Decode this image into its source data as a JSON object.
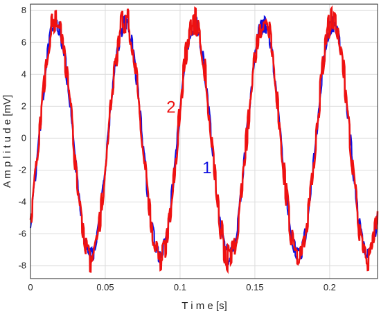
{
  "chart_data": {
    "type": "line",
    "xlabel": "T i m e [s]",
    "ylabel": "A m p l i t u d e [mV]",
    "xlim": [
      0,
      0.232
    ],
    "ylim": [
      -8.8,
      8.4
    ],
    "xticks": [
      0,
      0.05,
      0.1,
      0.15,
      0.2
    ],
    "xtick_labels": [
      "0",
      "0.05",
      "0.1",
      "0.15",
      "0.2"
    ],
    "yticks": [
      -8,
      -6,
      -4,
      -2,
      0,
      2,
      4,
      6,
      8
    ],
    "ytick_labels": [
      "-8",
      "-6",
      "-4",
      "-2",
      "0",
      "2",
      "4",
      "6",
      "8"
    ],
    "grid": true,
    "series": [
      {
        "name": "1",
        "color": "#1010e0",
        "description": "noisy sinusoid, ~21.6 Hz",
        "amplitude": 7.3,
        "offset": -0.1,
        "frequency_hz": 21.6,
        "phase_zero_crossing_s": 0.0055,
        "noise_amplitude": 0.6
      },
      {
        "name": "2",
        "color": "#ee1111",
        "description": "noisy sinusoid, ~21.6 Hz",
        "amplitude": 7.5,
        "offset": -0.1,
        "frequency_hz": 21.6,
        "phase_zero_crossing_s": 0.0055,
        "noise_amplitude": 0.9
      }
    ],
    "annotations": [
      {
        "text": "2",
        "x": 0.094,
        "y": 2.0,
        "color": "#ee1111"
      },
      {
        "text": "1",
        "x": 0.118,
        "y": -1.8,
        "color": "#1010e0"
      }
    ]
  }
}
